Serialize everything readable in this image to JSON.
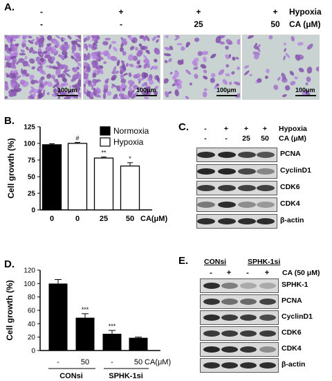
{
  "panel_a": {
    "letter": "A.",
    "row_labels": [
      "Hypoxia",
      "CA (μM)"
    ],
    "columns": [
      {
        "hypoxia": "-",
        "ca": "-"
      },
      {
        "hypoxia": "+",
        "ca": "-"
      },
      {
        "hypoxia": "+",
        "ca": "25"
      },
      {
        "hypoxia": "+",
        "ca": "50"
      }
    ],
    "scale_bar_label": "100μm"
  },
  "panel_b": {
    "letter": "B.",
    "legend": [
      "Normoxia",
      "Hypoxia"
    ],
    "sig_marks": [
      "#",
      "**",
      "*"
    ]
  },
  "panel_c": {
    "letter": "C.",
    "row_labels": [
      "Hypoxia",
      "CA (μM)"
    ],
    "columns": [
      {
        "hypoxia": "-",
        "ca": "-"
      },
      {
        "hypoxia": "+",
        "ca": "-"
      },
      {
        "hypoxia": "+",
        "ca": "25"
      },
      {
        "hypoxia": "+",
        "ca": "50"
      }
    ],
    "bands": [
      "PCNA",
      "CyclinD1",
      "CDK6",
      "CDK4",
      "β-actin"
    ]
  },
  "panel_d": {
    "letter": "D.",
    "groups": [
      "CONsi",
      "SPHK-1si"
    ],
    "sig_marks": [
      "***",
      "***"
    ]
  },
  "panel_e": {
    "letter": "E.",
    "groups": [
      "CONsi",
      "SPHK-1si"
    ],
    "treatment_label": "CA (50 μM)",
    "signs": [
      "-",
      "+",
      "-",
      "+"
    ],
    "bands": [
      "SPHK-1",
      "PCNA",
      "CyclinD1",
      "CDK6",
      "CDK4",
      "β-actin"
    ]
  },
  "chart_data": [
    {
      "type": "bar",
      "panel": "B",
      "ylabel": "Cell growth (%)",
      "xlabel": "CA(μM)",
      "categories": [
        "0",
        "0",
        "25",
        "50"
      ],
      "series": [
        {
          "name": "Normoxia",
          "values": [
            98,
            null,
            null,
            null
          ],
          "color": "#000000"
        },
        {
          "name": "Hypoxia",
          "values": [
            null,
            100,
            78,
            66
          ],
          "color": "#ffffff"
        }
      ],
      "errors": [
        1.5,
        1.5,
        1.5,
        5
      ],
      "ylim": [
        0,
        125
      ],
      "yticks": [
        "0",
        "25",
        "50",
        "75",
        "100",
        "125"
      ]
    },
    {
      "type": "bar",
      "panel": "D",
      "ylabel": "Cell growth (%)",
      "xlabel": "CA(μM)",
      "categories": [
        "-",
        "50",
        "-",
        "50"
      ],
      "groups": [
        "CONsi",
        "SPHK-1si"
      ],
      "values": [
        100,
        49,
        25,
        19
      ],
      "errors": [
        6,
        6,
        5,
        1
      ],
      "ylim": [
        0,
        120
      ],
      "yticks": [
        "0",
        "20",
        "40",
        "60",
        "80",
        "100",
        "120"
      ]
    }
  ]
}
